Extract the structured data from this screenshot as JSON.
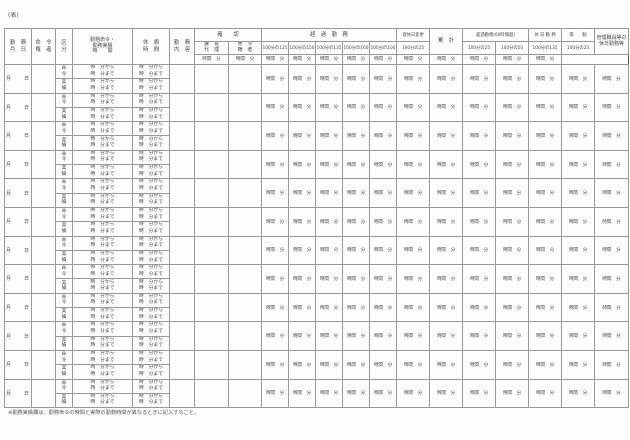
{
  "form": {
    "side_label": "(表)",
    "header": {
      "date_col": "勤　務\n月　日",
      "orderer_col": "命　令\n権　者",
      "category_col": "区\n分",
      "time_col": "勤務命令・\n勤務実績\n時　　間",
      "break_col": "休　憩\n時　間",
      "content_col": "勤　務\n内　容",
      "confirm_group": "確　　認",
      "confirm_sub": [
        "課　長\n代　理",
        "命　令\n権　者"
      ],
      "overtime_group": "超　過　勤　務",
      "overtime_rates": [
        "100分の125",
        "100分の150",
        "100分の135",
        "100分の160",
        "100分の100"
      ],
      "holiday_change_group": "週休日変更",
      "holiday_change_rate": "100分の25",
      "total_col": "累　計",
      "overtime60_group": "超過勤務(60時間超)",
      "overtime60_rates": [
        "100分の25",
        "100分の50"
      ],
      "holiday_work_group": "休 日 勤 務",
      "holiday_work_rate": "100分の135",
      "night_work_group": "夜　　勤",
      "night_work_rate": "100分の25",
      "manager_col": "管理職員等の\n休日勤務等",
      "unit_label": "時間　分"
    },
    "row_template": {
      "date_label": "月　　日",
      "order_label": "命\n令",
      "actual_label": "実\n績",
      "time_range": "時　分から\n時　分まで",
      "unit_label": "時間　分"
    },
    "row_count": 12,
    "note": "※勤務実績欄は、勤務命令の時間と実際の勤務時間が異なるときに記入すること。"
  }
}
